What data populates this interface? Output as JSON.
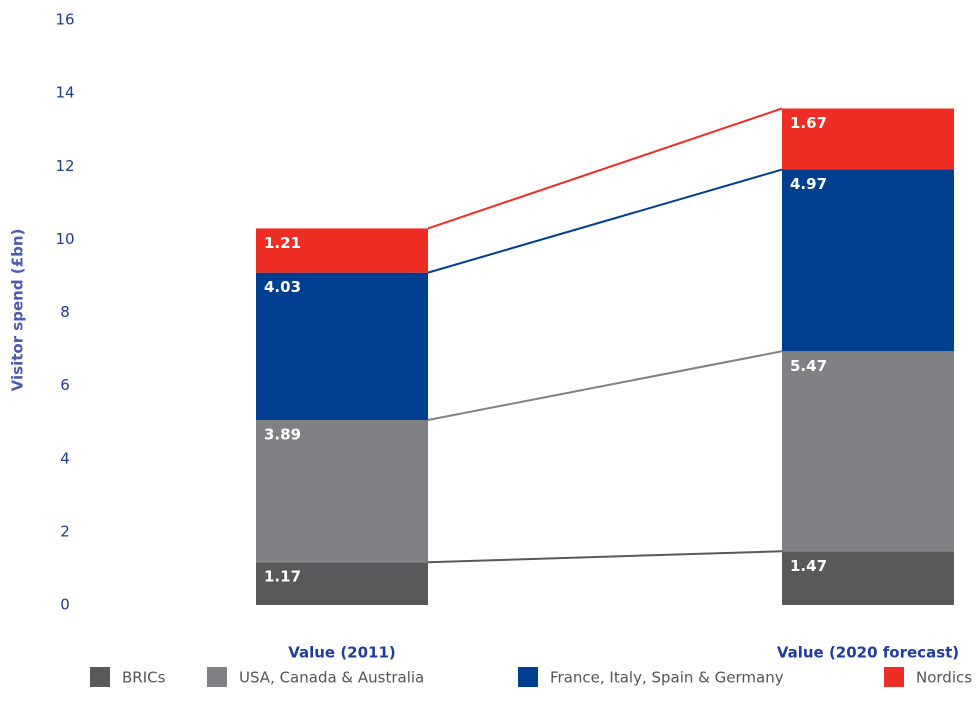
{
  "chart_data": {
    "type": "bar",
    "stacked": true,
    "y_label": "Visitor spend (£bn)",
    "categories": [
      "Value (2011)",
      "Value (2020 forecast)"
    ],
    "series": [
      {
        "name": "BRICs",
        "color": "#58595b",
        "values": [
          1.17,
          1.47
        ]
      },
      {
        "name": "USA, Canada & Australia",
        "color": "#808184",
        "values": [
          3.89,
          5.47
        ]
      },
      {
        "name": "France, Italy, Spain & Germany",
        "color": "#003f8f",
        "values": [
          4.03,
          4.97
        ]
      },
      {
        "name": "Nordics",
        "color": "#ee2d24",
        "values": [
          1.21,
          1.67
        ]
      }
    ],
    "ylim": [
      0,
      16
    ],
    "yticks": [
      0,
      2,
      4,
      6,
      8,
      10,
      12,
      14,
      16
    ]
  }
}
